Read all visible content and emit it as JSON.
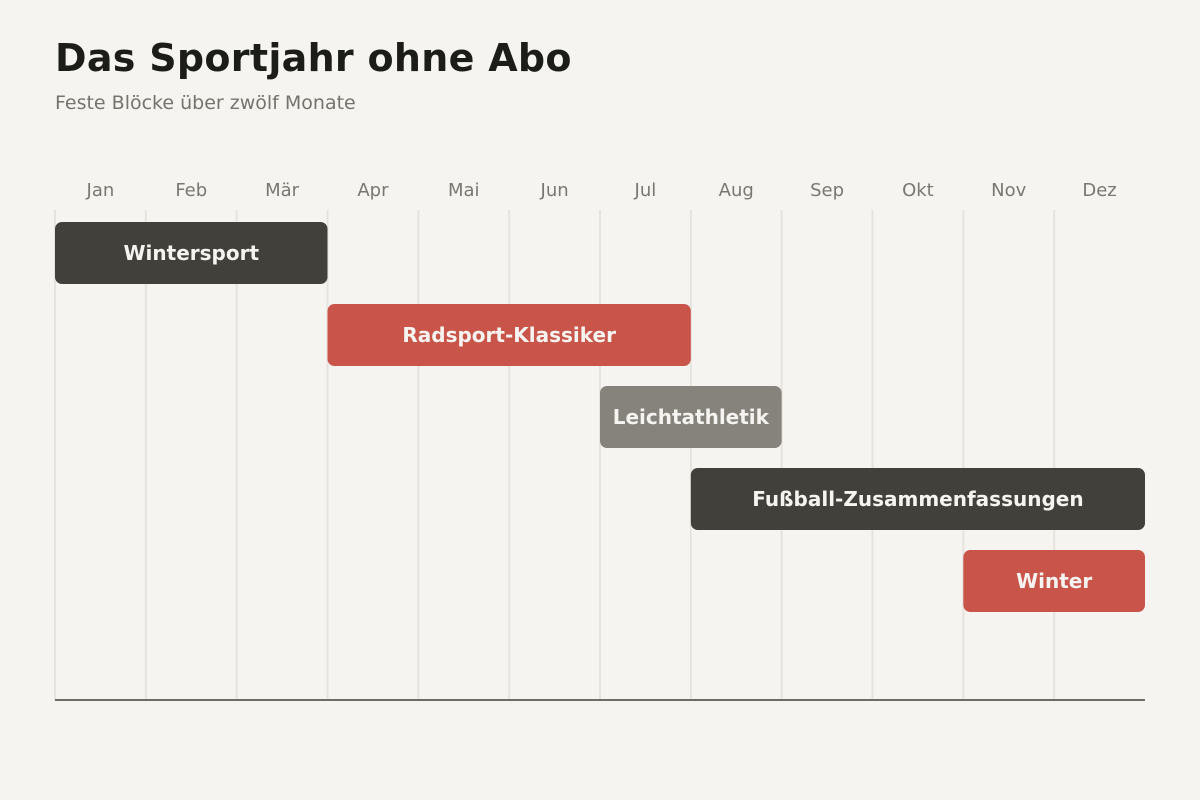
{
  "title": "Das Sportjahr ohne Abo",
  "subtitle": "Feste Blöcke über zwölf Monate",
  "chart_data": {
    "type": "gantt",
    "title": "Das Sportjahr ohne Abo",
    "subtitle": "Feste Blöcke über zwölf Monate",
    "months": [
      "Jan",
      "Feb",
      "Mär",
      "Apr",
      "Mai",
      "Jun",
      "Jul",
      "Aug",
      "Sep",
      "Okt",
      "Nov",
      "Dez"
    ],
    "grid": true,
    "tasks": [
      {
        "label": "Wintersport",
        "start_month": 1,
        "end_month": 3,
        "color": "#41403b"
      },
      {
        "label": "Radsport-Klassiker",
        "start_month": 4,
        "end_month": 7,
        "color": "#c9554a"
      },
      {
        "label": "Leichtathletik",
        "start_month": 7,
        "end_month": 8,
        "color": "#85837b"
      },
      {
        "label": "Fußball-Zusammenfassungen",
        "start_month": 8,
        "end_month": 12,
        "color": "#41403b"
      },
      {
        "label": "Winter",
        "start_month": 11,
        "end_month": 12,
        "color": "#c9554a"
      }
    ]
  }
}
